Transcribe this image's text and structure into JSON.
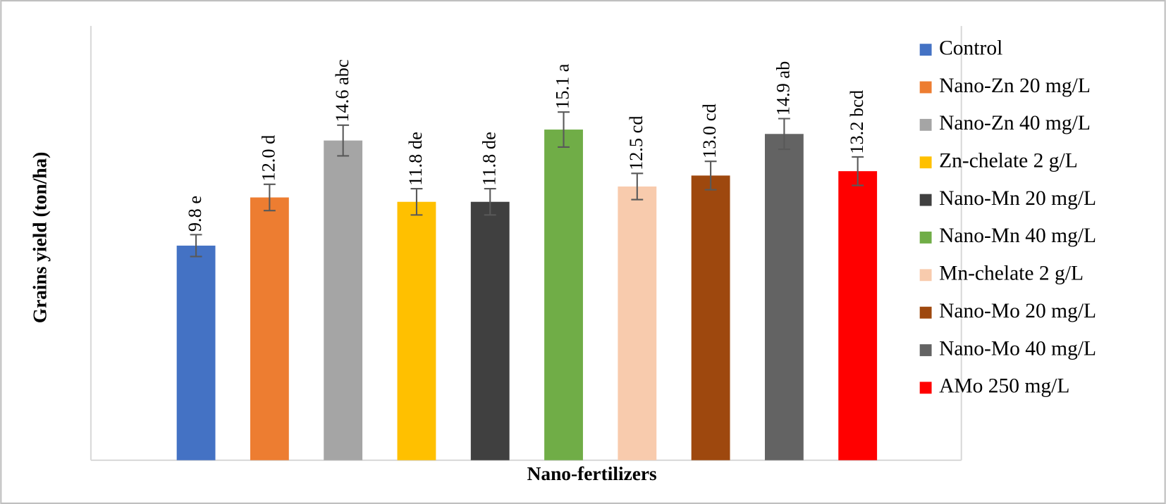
{
  "chart_data": {
    "type": "bar",
    "x_label": "Nano-fertilizers",
    "y_label": "Grains yield (ton/ha)",
    "categories": [
      "Control",
      "Nano-Zn 20 mg/L",
      "Nano-Zn 40 mg/L",
      "Zn-chelate 2 g/L",
      "Nano-Mn 20 mg/L",
      "Nano-Mn 40 mg/L",
      "Mn-chelate 2 g/L",
      "Nano-Mo 20 mg/L",
      "Nano-Mo 40 mg/L",
      "AMo 250 mg/L"
    ],
    "values": [
      9.8,
      12.0,
      14.6,
      11.8,
      11.8,
      15.1,
      12.5,
      13.0,
      14.9,
      13.2
    ],
    "value_labels": [
      "9.8 e",
      "12.0 d",
      "14.6 abc",
      "11.8 de",
      "11.8 de",
      "15.1 a",
      "12.5 cd",
      "13.0 cd",
      "14.9 ab",
      "13.2 bcd"
    ],
    "errors": [
      0.5,
      0.6,
      0.7,
      0.6,
      0.6,
      0.8,
      0.6,
      0.65,
      0.7,
      0.65
    ],
    "colors": [
      "#4472c4",
      "#ed7d31",
      "#a5a5a5",
      "#ffc000",
      "#404040",
      "#70ad47",
      "#f8cbad",
      "#9e480e",
      "#636363",
      "#ff0000"
    ],
    "ylim": [
      0,
      20
    ],
    "legend": "right"
  }
}
